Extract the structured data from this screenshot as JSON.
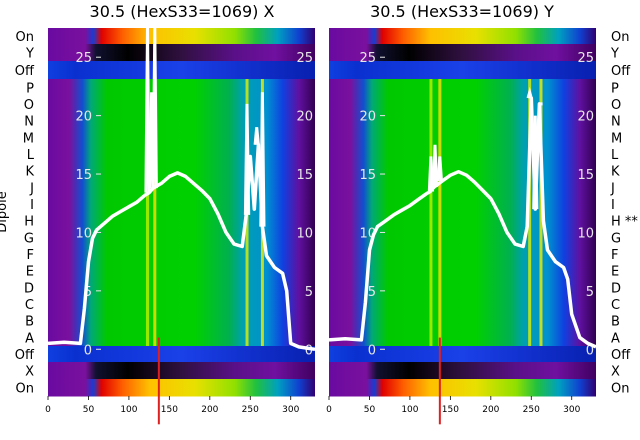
{
  "chart_data": [
    {
      "type": "heatmap",
      "title": "30.5 (HexS33=1069) X",
      "ylabel": "Dipole",
      "row_labels": [
        "On",
        "Y",
        "Off",
        "P",
        "O",
        "N",
        "M",
        "L",
        "K",
        "J",
        "I",
        "H",
        "G",
        "F",
        "E",
        "D",
        "C",
        "B",
        "A",
        "Off",
        "X",
        "On"
      ],
      "xlim": [
        0,
        330
      ],
      "x_ticks": [
        0,
        50,
        100,
        150,
        200,
        250,
        300
      ],
      "overlay_y_ticks": [
        0,
        5,
        10,
        15,
        20,
        25
      ],
      "overlay_ylim": [
        -4,
        27.5
      ],
      "overlay_line": {
        "x": [
          0,
          20,
          40,
          45,
          50,
          55,
          60,
          70,
          80,
          90,
          100,
          110,
          120,
          125,
          130,
          140,
          150,
          160,
          170,
          180,
          190,
          200,
          210,
          220,
          230,
          240,
          245,
          250,
          255,
          260,
          265,
          270,
          280,
          290,
          295,
          300,
          310,
          320,
          330
        ],
        "y": [
          0.5,
          0.6,
          0.5,
          3.5,
          7.5,
          9.5,
          10.2,
          10.8,
          11.4,
          11.8,
          12.2,
          12.6,
          13.2,
          13.4,
          13.8,
          14.2,
          14.8,
          15.1,
          14.8,
          14.2,
          13.6,
          12.9,
          11.6,
          10.0,
          9.0,
          8.8,
          11.5,
          16.5,
          12.0,
          17.5,
          10.5,
          8.0,
          7.0,
          6.5,
          5.0,
          0.5,
          0.2,
          0.1,
          0.0
        ],
        "spikes": [
          {
            "x": 123,
            "y": 28
          },
          {
            "x": 128,
            "y": 22
          },
          {
            "x": 132,
            "y": 28
          },
          {
            "x": 246,
            "y": 21
          },
          {
            "x": 258,
            "y": 19
          },
          {
            "x": 265,
            "y": 22
          }
        ]
      }
    },
    {
      "type": "heatmap",
      "title": "30.5 (HexS33=1069) Y",
      "row_labels": [
        "On",
        "Y",
        "Off",
        "P",
        "O",
        "N",
        "M",
        "L",
        "K",
        "J",
        "I",
        "H **",
        "G",
        "F",
        "E",
        "D",
        "C",
        "B",
        "A",
        "Off",
        "X",
        "On"
      ],
      "xlim": [
        0,
        330
      ],
      "x_ticks": [
        0,
        50,
        100,
        150,
        200,
        250,
        300
      ],
      "overlay_y_ticks": [
        0,
        5,
        10,
        15,
        20,
        25
      ],
      "overlay_ylim": [
        -4,
        27.5
      ],
      "overlay_line": {
        "x": [
          0,
          20,
          40,
          45,
          50,
          55,
          60,
          70,
          80,
          90,
          100,
          110,
          120,
          125,
          130,
          140,
          150,
          160,
          170,
          180,
          190,
          200,
          210,
          220,
          230,
          240,
          245,
          250,
          255,
          260,
          265,
          270,
          280,
          290,
          295,
          300,
          310,
          320,
          330
        ],
        "y": [
          0.8,
          0.9,
          0.8,
          4.0,
          8.5,
          9.8,
          10.5,
          11.0,
          11.5,
          11.9,
          12.3,
          12.8,
          13.3,
          13.5,
          13.9,
          14.4,
          14.9,
          15.2,
          14.9,
          14.3,
          13.6,
          12.9,
          11.6,
          10.0,
          9.0,
          8.8,
          10.5,
          21.5,
          12.0,
          21.0,
          11.0,
          8.5,
          7.5,
          7.0,
          6.0,
          3.0,
          1.0,
          0.5,
          0.2
        ],
        "spikes": [
          {
            "x": 126,
            "y": 16.5
          },
          {
            "x": 131,
            "y": 17.5
          },
          {
            "x": 137,
            "y": 16.5
          },
          {
            "x": 248,
            "y": 22
          },
          {
            "x": 255,
            "y": 20
          },
          {
            "x": 262,
            "y": 21
          }
        ]
      }
    }
  ]
}
